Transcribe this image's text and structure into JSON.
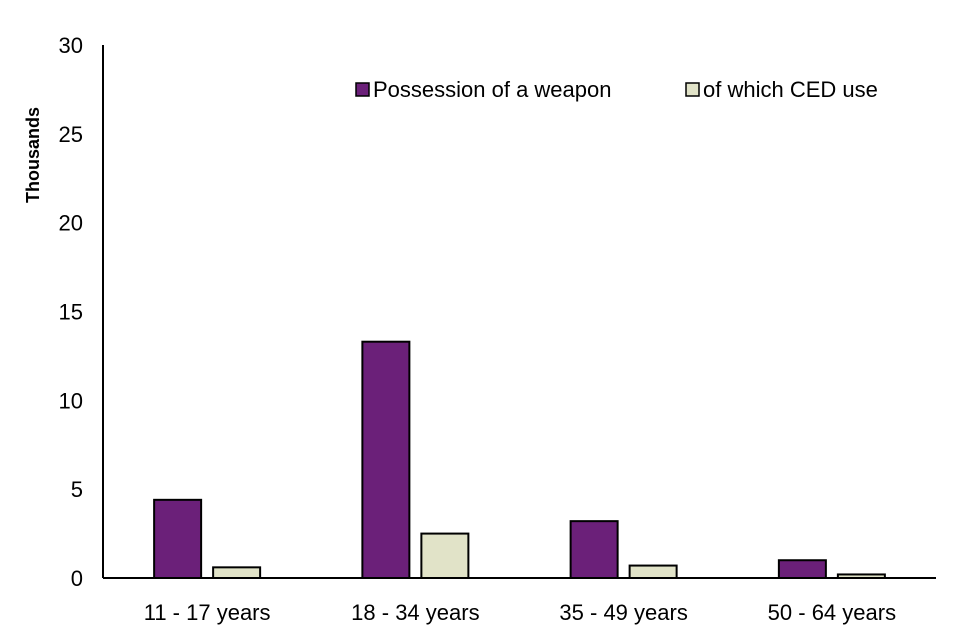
{
  "chart_data": {
    "type": "bar",
    "categories": [
      "11 - 17 years",
      "18 - 34 years",
      "35 - 49 years",
      "50 - 64 years"
    ],
    "series": [
      {
        "name": "Possession of a weapon",
        "values": [
          4.4,
          13.3,
          3.2,
          1.0
        ],
        "color": "#6b2079"
      },
      {
        "name": "of which CED use",
        "values": [
          0.6,
          2.5,
          0.7,
          0.2
        ],
        "color": "#e1e3c8"
      }
    ],
    "title": "",
    "xlabel": "",
    "ylabel": "Thousands",
    "ylim": [
      0,
      30
    ],
    "yticks": [
      0,
      5,
      10,
      15,
      20,
      25,
      30
    ],
    "grid": false,
    "legend_position": "top-right"
  }
}
